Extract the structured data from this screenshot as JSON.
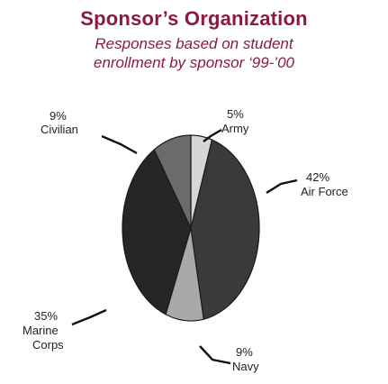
{
  "header": {
    "title": "Sponsor’s Organization",
    "subtitle_line1": "Responses based on student",
    "subtitle_line2": "enrollment by sponsor ‘99-’00"
  },
  "chart_data": {
    "type": "pie",
    "title": "Sponsor’s Organization",
    "slices": [
      {
        "label": "Army",
        "value": 5,
        "pct_label": "5%",
        "color": "#d6d6d6"
      },
      {
        "label": "Air Force",
        "value": 42,
        "pct_label": "42%",
        "color": "#3a3a3a"
      },
      {
        "label": "Navy",
        "value": 9,
        "pct_label": "9%",
        "color": "#a9a9a9"
      },
      {
        "label": "Marine Corps",
        "value": 35,
        "pct_label": "35%",
        "color": "#262626"
      },
      {
        "label": "Civilian",
        "value": 9,
        "pct_label": "9%",
        "color": "#6b6b6b"
      }
    ]
  }
}
